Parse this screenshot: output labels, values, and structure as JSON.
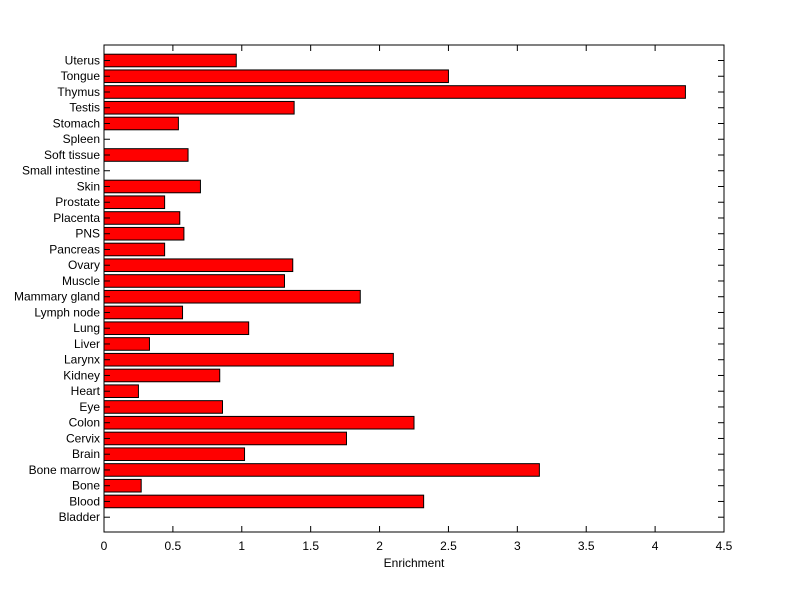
{
  "chart_data": {
    "type": "bar",
    "orientation": "horizontal",
    "xlabel": "Enrichment",
    "ylabel": "",
    "title": "",
    "xlim": [
      0,
      4.5
    ],
    "xticks": [
      0,
      0.5,
      1,
      1.5,
      2,
      2.5,
      3,
      3.5,
      4,
      4.5
    ],
    "xtick_labels": [
      "0",
      "0.5",
      "1",
      "1.5",
      "2",
      "2.5",
      "3",
      "3.5",
      "4",
      "4.5"
    ],
    "grid": false,
    "bar_color": "#ff0000",
    "categories": [
      "Uterus",
      "Tongue",
      "Thymus",
      "Testis",
      "Stomach",
      "Spleen",
      "Soft tissue",
      "Small intestine",
      "Skin",
      "Prostate",
      "Placenta",
      "PNS",
      "Pancreas",
      "Ovary",
      "Muscle",
      "Mammary gland",
      "Lymph node",
      "Lung",
      "Liver",
      "Larynx",
      "Kidney",
      "Heart",
      "Eye",
      "Colon",
      "Cervix",
      "Brain",
      "Bone marrow",
      "Bone",
      "Blood",
      "Bladder"
    ],
    "values": [
      0.96,
      2.5,
      4.22,
      1.38,
      0.54,
      0,
      0.61,
      0,
      0.7,
      0.44,
      0.55,
      0.58,
      0.44,
      1.37,
      1.31,
      1.86,
      0.57,
      1.05,
      0.33,
      2.1,
      0.84,
      0.25,
      0.86,
      2.25,
      1.76,
      1.02,
      3.16,
      0.27,
      2.32,
      0
    ]
  }
}
